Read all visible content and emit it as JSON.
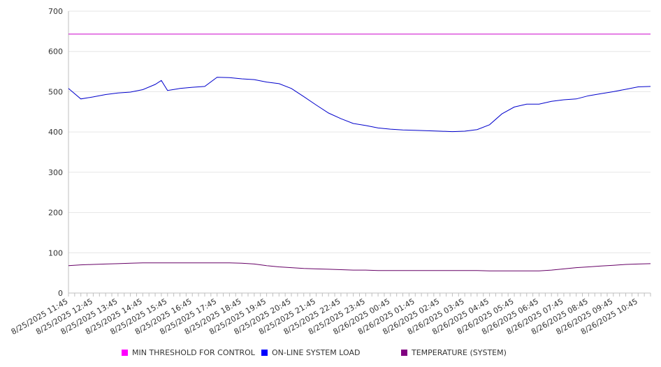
{
  "chart_data": {
    "type": "line",
    "title": "",
    "xlabel": "",
    "ylabel": "",
    "ylim": [
      0,
      700
    ],
    "y_ticks": [
      0,
      100,
      200,
      300,
      400,
      500,
      600,
      700
    ],
    "grid": "horizontal",
    "legend_position": "bottom",
    "x_tick_labels": [
      "8/25/2025 11:45",
      "8/25/2025 12:45",
      "8/25/2025 13:45",
      "8/25/2025 14:45",
      "8/25/2025 15:45",
      "8/25/2025 16:45",
      "8/25/2025 17:45",
      "8/25/2025 18:45",
      "8/25/2025 19:45",
      "8/25/2025 20:45",
      "8/25/2025 21:45",
      "8/25/2025 22:45",
      "8/25/2025 23:45",
      "8/26/2025 00:45",
      "8/26/2025 01:45",
      "8/26/2025 02:45",
      "8/26/2025 03:45",
      "8/26/2025 04:45",
      "8/26/2025 05:45",
      "8/26/2025 06:45",
      "8/26/2025 07:45",
      "8/26/2025 08:45",
      "8/26/2025 09:45",
      "8/26/2025 10:45"
    ],
    "x_minor_ticks_per_hour": 4,
    "x_points_times": [
      "8/25/2025 11:45",
      "8/25/2025 12:15",
      "8/25/2025 12:45",
      "8/25/2025 13:15",
      "8/25/2025 13:45",
      "8/25/2025 14:15",
      "8/25/2025 14:45",
      "8/25/2025 15:15",
      "8/25/2025 15:30",
      "8/25/2025 15:45",
      "8/25/2025 16:15",
      "8/25/2025 16:45",
      "8/25/2025 17:15",
      "8/25/2025 17:45",
      "8/25/2025 18:15",
      "8/25/2025 18:45",
      "8/25/2025 19:15",
      "8/25/2025 19:45",
      "8/25/2025 20:15",
      "8/25/2025 20:45",
      "8/25/2025 21:15",
      "8/25/2025 21:45",
      "8/25/2025 22:15",
      "8/25/2025 22:45",
      "8/25/2025 23:15",
      "8/25/2025 23:45",
      "8/26/2025 00:15",
      "8/26/2025 00:45",
      "8/26/2025 01:15",
      "8/26/2025 01:45",
      "8/26/2025 02:15",
      "8/26/2025 02:45",
      "8/26/2025 03:15",
      "8/26/2025 03:45",
      "8/26/2025 04:15",
      "8/26/2025 04:45",
      "8/26/2025 05:15",
      "8/26/2025 05:45",
      "8/26/2025 06:15",
      "8/26/2025 06:45",
      "8/26/2025 07:15",
      "8/26/2025 07:45",
      "8/26/2025 08:15",
      "8/26/2025 08:45",
      "8/26/2025 09:15",
      "8/26/2025 09:45",
      "8/26/2025 10:15",
      "8/26/2025 10:45",
      "8/26/2025 11:15"
    ],
    "series": [
      {
        "name": "MIN THRESHOLD FOR CONTROL",
        "color": "#cc00cc",
        "swatch_color": "#ff00ff",
        "values": [
          643,
          643,
          643,
          643,
          643,
          643,
          643,
          643,
          643,
          643,
          643,
          643,
          643,
          643,
          643,
          643,
          643,
          643,
          643,
          643,
          643,
          643,
          643,
          643,
          643,
          643,
          643,
          643,
          643,
          643,
          643,
          643,
          643,
          643,
          643,
          643,
          643,
          643,
          643,
          643,
          643,
          643,
          643,
          643,
          643,
          643,
          643,
          643,
          643
        ]
      },
      {
        "name": "ON-LINE SYSTEM LOAD",
        "color": "#0000cc",
        "swatch_color": "#0000ff",
        "values": [
          508,
          482,
          487,
          493,
          497,
          499,
          505,
          518,
          528,
          503,
          508,
          511,
          513,
          536,
          535,
          532,
          530,
          524,
          520,
          508,
          488,
          467,
          447,
          433,
          421,
          416,
          410,
          407,
          405,
          404,
          403,
          402,
          401,
          402,
          406,
          418,
          445,
          462,
          469,
          469,
          476,
          480,
          482,
          490,
          495,
          500,
          506,
          512,
          513
        ]
      },
      {
        "name": "TEMPERATURE (SYSTEM)",
        "color": "#660066",
        "swatch_color": "#800080",
        "values": [
          68,
          70,
          71,
          72,
          73,
          74,
          75,
          75,
          75,
          75,
          75,
          75,
          75,
          75,
          75,
          74,
          72,
          68,
          65,
          63,
          61,
          60,
          59,
          58,
          57,
          57,
          56,
          56,
          56,
          56,
          56,
          56,
          56,
          56,
          56,
          55,
          55,
          55,
          55,
          55,
          57,
          60,
          63,
          65,
          67,
          69,
          71,
          72,
          73
        ]
      }
    ]
  }
}
